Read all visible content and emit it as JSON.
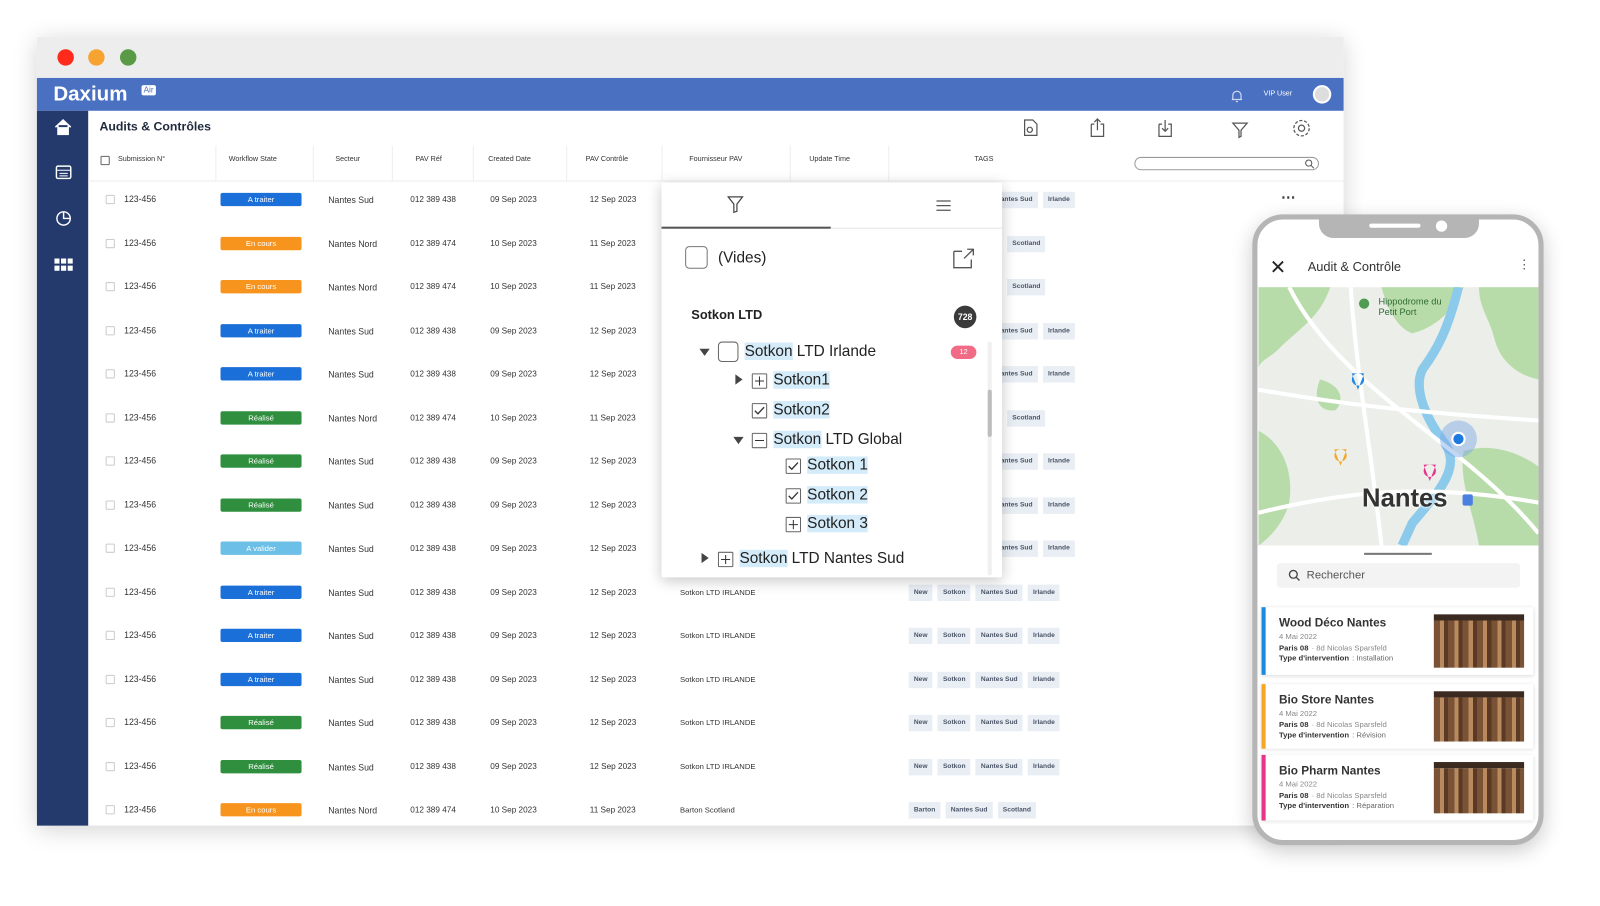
{
  "window": {
    "brand": "Daxium",
    "brand_badge": "Air",
    "user": "VIP User",
    "page_title": "Audits & Contrôles"
  },
  "table": {
    "columns": [
      "Submission N°",
      "Workflow State",
      "Secteur",
      "PAV Réf",
      "Created Date",
      "PAV Contrôle",
      "Fournisseur PAV",
      "Update Time",
      "TAGS"
    ],
    "rows": [
      {
        "submission": "123-456",
        "status": "A traiter",
        "status_color": "#1a6fd8",
        "secteur": "Nantes Sud",
        "pav_ref": "012 389 438",
        "created": "09 Sep 2023",
        "pav_controle": "12 Sep 2023",
        "tags": [
          "Nantes Sud",
          "Irlande"
        ]
      },
      {
        "submission": "123-456",
        "status": "En cours",
        "status_color": "#f7941d",
        "secteur": "Nantes Nord",
        "pav_ref": "012 389 474",
        "created": "10 Sep 2023",
        "pav_controle": "11 Sep 2023",
        "tags": [
          "Scotland"
        ]
      },
      {
        "submission": "123-456",
        "status": "En cours",
        "status_color": "#f7941d",
        "secteur": "Nantes Nord",
        "pav_ref": "012 389 474",
        "created": "10 Sep 2023",
        "pav_controle": "11 Sep 2023",
        "tags": [
          "Scotland"
        ]
      },
      {
        "submission": "123-456",
        "status": "A traiter",
        "status_color": "#1a6fd8",
        "secteur": "Nantes Sud",
        "pav_ref": "012 389 438",
        "created": "09 Sep 2023",
        "pav_controle": "12 Sep 2023",
        "tags": [
          "Nantes Sud",
          "Irlande"
        ]
      },
      {
        "submission": "123-456",
        "status": "A traiter",
        "status_color": "#1a6fd8",
        "secteur": "Nantes Sud",
        "pav_ref": "012 389 438",
        "created": "09 Sep 2023",
        "pav_controle": "12 Sep 2023",
        "tags": [
          "Nantes Sud",
          "Irlande"
        ]
      },
      {
        "submission": "123-456",
        "status": "Réalisé",
        "status_color": "#2f8f3e",
        "secteur": "Nantes Nord",
        "pav_ref": "012 389 474",
        "created": "10 Sep 2023",
        "pav_controle": "11 Sep 2023",
        "tags": [
          "Scotland"
        ]
      },
      {
        "submission": "123-456",
        "status": "Réalisé",
        "status_color": "#2f8f3e",
        "secteur": "Nantes Sud",
        "pav_ref": "012 389 438",
        "created": "09 Sep 2023",
        "pav_controle": "12 Sep 2023",
        "tags": [
          "Nantes Sud",
          "Irlande"
        ]
      },
      {
        "submission": "123-456",
        "status": "Réalisé",
        "status_color": "#2f8f3e",
        "secteur": "Nantes Sud",
        "pav_ref": "012 389 438",
        "created": "09 Sep 2023",
        "pav_controle": "12 Sep 2023",
        "tags": [
          "Nantes Sud",
          "Irlande"
        ]
      },
      {
        "submission": "123-456",
        "status": "A valider",
        "status_color": "#6cbfe6",
        "secteur": "Nantes Sud",
        "pav_ref": "012 389 438",
        "created": "09 Sep 2023",
        "pav_controle": "12 Sep 2023",
        "tags": [
          "Nantes Sud",
          "Irlande"
        ]
      },
      {
        "submission": "123-456",
        "status": "A traiter",
        "status_color": "#1a6fd8",
        "secteur": "Nantes Sud",
        "pav_ref": "012 389 438",
        "created": "09 Sep 2023",
        "pav_controle": "12 Sep 2023",
        "fournisseur": "Sotkon LTD IRLANDE",
        "tags": [
          "New",
          "Sotkon",
          "Nantes Sud",
          "Irlande"
        ]
      },
      {
        "submission": "123-456",
        "status": "A traiter",
        "status_color": "#1a6fd8",
        "secteur": "Nantes Sud",
        "pav_ref": "012 389 438",
        "created": "09 Sep 2023",
        "pav_controle": "12 Sep 2023",
        "fournisseur": "Sotkon LTD IRLANDE",
        "tags": [
          "New",
          "Sotkon",
          "Nantes Sud",
          "Irlande"
        ]
      },
      {
        "submission": "123-456",
        "status": "A traiter",
        "status_color": "#1a6fd8",
        "secteur": "Nantes Sud",
        "pav_ref": "012 389 438",
        "created": "09 Sep 2023",
        "pav_controle": "12 Sep 2023",
        "fournisseur": "Sotkon LTD IRLANDE",
        "tags": [
          "New",
          "Sotkon",
          "Nantes Sud",
          "Irlande"
        ]
      },
      {
        "submission": "123-456",
        "status": "Réalisé",
        "status_color": "#2f8f3e",
        "secteur": "Nantes Sud",
        "pav_ref": "012 389 438",
        "created": "09 Sep 2023",
        "pav_controle": "12 Sep 2023",
        "fournisseur": "Sotkon LTD IRLANDE",
        "tags": [
          "New",
          "Sotkon",
          "Nantes Sud",
          "Irlande"
        ]
      },
      {
        "submission": "123-456",
        "status": "Réalisé",
        "status_color": "#2f8f3e",
        "secteur": "Nantes Sud",
        "pav_ref": "012 389 438",
        "created": "09 Sep 2023",
        "pav_controle": "12 Sep 2023",
        "fournisseur": "Sotkon LTD IRLANDE",
        "tags": [
          "New",
          "Sotkon",
          "Nantes Sud",
          "Irlande"
        ]
      },
      {
        "submission": "123-456",
        "status": "En cours",
        "status_color": "#f7941d",
        "secteur": "Nantes Nord",
        "pav_ref": "012 389 474",
        "created": "10 Sep 2023",
        "pav_controle": "11 Sep 2023",
        "fournisseur": "Barton Scotland",
        "tags": [
          "Barton",
          "Nantes Sud",
          "Scotland"
        ]
      }
    ]
  },
  "filter_popup": {
    "empty_option": "(Vides)",
    "group": "Sotkon LTD",
    "group_count": 728,
    "tree": [
      {
        "parts": [
          "Sotkon",
          " LTD Irlande"
        ],
        "depth": 0,
        "toggle": "expanded",
        "box": "empty",
        "badge": 12
      },
      {
        "parts": [
          "Sotkon1"
        ],
        "depth": 1,
        "toggle": "collapsed",
        "box": "plus"
      },
      {
        "parts": [
          "Sotkon2"
        ],
        "depth": 1,
        "box": "check"
      },
      {
        "parts": [
          "Sotkon",
          " LTD Global"
        ],
        "depth": 1,
        "toggle": "expanded",
        "box": "minus"
      },
      {
        "parts": [
          "Sotkon 1"
        ],
        "depth": 2,
        "box": "check"
      },
      {
        "parts": [
          "Sotkon 2"
        ],
        "depth": 2,
        "box": "check"
      },
      {
        "parts": [
          "Sotkon 3"
        ],
        "depth": 2,
        "box": "plus"
      },
      {
        "parts": [
          "Sotkon",
          " LTD Nantes Sud"
        ],
        "depth": 0,
        "toggle": "collapsed",
        "box": "plus"
      }
    ]
  },
  "phone": {
    "title": "Audit & Contrôle",
    "poi": "Hippodrome du Petit Port",
    "map_label": "Nantes",
    "search_placeholder": "Rechercher",
    "cards": [
      {
        "title": "Wood Déco Nantes",
        "date": "4 Mai 2022",
        "city": "Paris 08",
        "address": "· 8d Nicolas Sparsfeld",
        "type_label": "Type d'intervention",
        "type_value": ": Installation",
        "color": "#1a8be0"
      },
      {
        "title": "Bio Store Nantes",
        "date": "4 Mai 2022",
        "city": "Paris 08",
        "address": "· 8d Nicolas Sparsfeld",
        "type_label": "Type d'intervention",
        "type_value": ": Révision",
        "color": "#f6a623"
      },
      {
        "title": "Bio Pharm Nantes",
        "date": "4 Mai 2022",
        "city": "Paris 08",
        "address": "· 8d Nicolas Sparsfeld",
        "type_label": "Type d'intervention",
        "type_value": ": Réparation",
        "color": "#e8348a"
      }
    ]
  }
}
